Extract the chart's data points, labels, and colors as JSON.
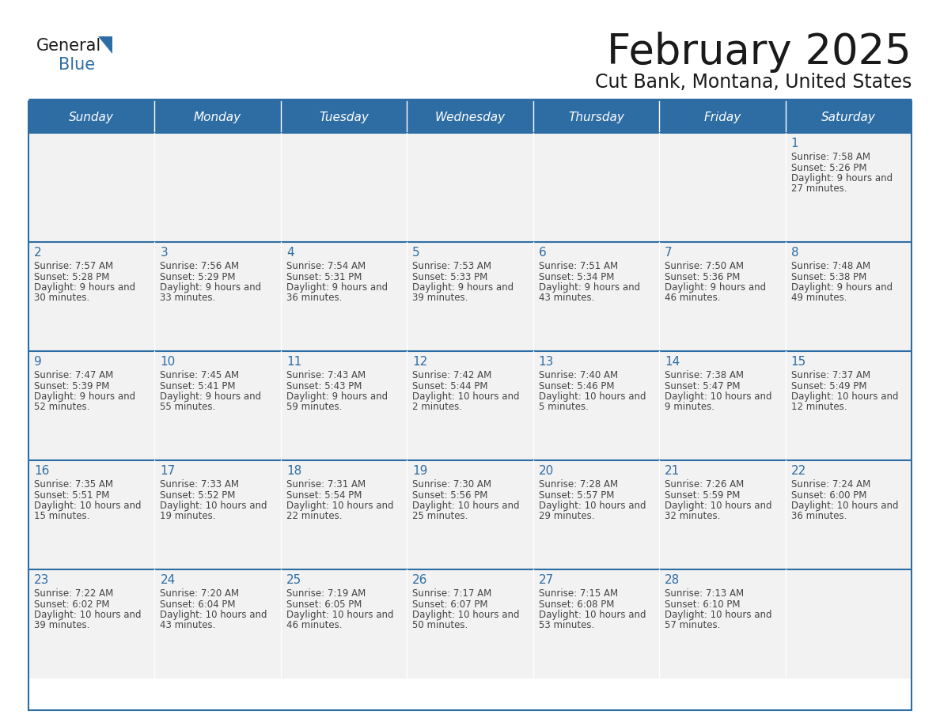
{
  "title": "February 2025",
  "subtitle": "Cut Bank, Montana, United States",
  "header_bg_color": "#2E6DA4",
  "header_text_color": "#FFFFFF",
  "cell_bg_color": "#F2F2F2",
  "cell_text_color": "#444444",
  "day_number_color": "#2E6DA4",
  "divider_color": "#2E6DA4",
  "days_of_week": [
    "Sunday",
    "Monday",
    "Tuesday",
    "Wednesday",
    "Thursday",
    "Friday",
    "Saturday"
  ],
  "calendar_data": [
    [
      null,
      null,
      null,
      null,
      null,
      null,
      {
        "day": 1,
        "sunrise": "7:58 AM",
        "sunset": "5:26 PM",
        "daylight": "9 hours and 27 minutes."
      }
    ],
    [
      {
        "day": 2,
        "sunrise": "7:57 AM",
        "sunset": "5:28 PM",
        "daylight": "9 hours and 30 minutes."
      },
      {
        "day": 3,
        "sunrise": "7:56 AM",
        "sunset": "5:29 PM",
        "daylight": "9 hours and 33 minutes."
      },
      {
        "day": 4,
        "sunrise": "7:54 AM",
        "sunset": "5:31 PM",
        "daylight": "9 hours and 36 minutes."
      },
      {
        "day": 5,
        "sunrise": "7:53 AM",
        "sunset": "5:33 PM",
        "daylight": "9 hours and 39 minutes."
      },
      {
        "day": 6,
        "sunrise": "7:51 AM",
        "sunset": "5:34 PM",
        "daylight": "9 hours and 43 minutes."
      },
      {
        "day": 7,
        "sunrise": "7:50 AM",
        "sunset": "5:36 PM",
        "daylight": "9 hours and 46 minutes."
      },
      {
        "day": 8,
        "sunrise": "7:48 AM",
        "sunset": "5:38 PM",
        "daylight": "9 hours and 49 minutes."
      }
    ],
    [
      {
        "day": 9,
        "sunrise": "7:47 AM",
        "sunset": "5:39 PM",
        "daylight": "9 hours and 52 minutes."
      },
      {
        "day": 10,
        "sunrise": "7:45 AM",
        "sunset": "5:41 PM",
        "daylight": "9 hours and 55 minutes."
      },
      {
        "day": 11,
        "sunrise": "7:43 AM",
        "sunset": "5:43 PM",
        "daylight": "9 hours and 59 minutes."
      },
      {
        "day": 12,
        "sunrise": "7:42 AM",
        "sunset": "5:44 PM",
        "daylight": "10 hours and 2 minutes."
      },
      {
        "day": 13,
        "sunrise": "7:40 AM",
        "sunset": "5:46 PM",
        "daylight": "10 hours and 5 minutes."
      },
      {
        "day": 14,
        "sunrise": "7:38 AM",
        "sunset": "5:47 PM",
        "daylight": "10 hours and 9 minutes."
      },
      {
        "day": 15,
        "sunrise": "7:37 AM",
        "sunset": "5:49 PM",
        "daylight": "10 hours and 12 minutes."
      }
    ],
    [
      {
        "day": 16,
        "sunrise": "7:35 AM",
        "sunset": "5:51 PM",
        "daylight": "10 hours and 15 minutes."
      },
      {
        "day": 17,
        "sunrise": "7:33 AM",
        "sunset": "5:52 PM",
        "daylight": "10 hours and 19 minutes."
      },
      {
        "day": 18,
        "sunrise": "7:31 AM",
        "sunset": "5:54 PM",
        "daylight": "10 hours and 22 minutes."
      },
      {
        "day": 19,
        "sunrise": "7:30 AM",
        "sunset": "5:56 PM",
        "daylight": "10 hours and 25 minutes."
      },
      {
        "day": 20,
        "sunrise": "7:28 AM",
        "sunset": "5:57 PM",
        "daylight": "10 hours and 29 minutes."
      },
      {
        "day": 21,
        "sunrise": "7:26 AM",
        "sunset": "5:59 PM",
        "daylight": "10 hours and 32 minutes."
      },
      {
        "day": 22,
        "sunrise": "7:24 AM",
        "sunset": "6:00 PM",
        "daylight": "10 hours and 36 minutes."
      }
    ],
    [
      {
        "day": 23,
        "sunrise": "7:22 AM",
        "sunset": "6:02 PM",
        "daylight": "10 hours and 39 minutes."
      },
      {
        "day": 24,
        "sunrise": "7:20 AM",
        "sunset": "6:04 PM",
        "daylight": "10 hours and 43 minutes."
      },
      {
        "day": 25,
        "sunrise": "7:19 AM",
        "sunset": "6:05 PM",
        "daylight": "10 hours and 46 minutes."
      },
      {
        "day": 26,
        "sunrise": "7:17 AM",
        "sunset": "6:07 PM",
        "daylight": "10 hours and 50 minutes."
      },
      {
        "day": 27,
        "sunrise": "7:15 AM",
        "sunset": "6:08 PM",
        "daylight": "10 hours and 53 minutes."
      },
      {
        "day": 28,
        "sunrise": "7:13 AM",
        "sunset": "6:10 PM",
        "daylight": "10 hours and 57 minutes."
      },
      null
    ]
  ],
  "fig_width": 11.88,
  "fig_height": 9.18,
  "dpi": 100
}
